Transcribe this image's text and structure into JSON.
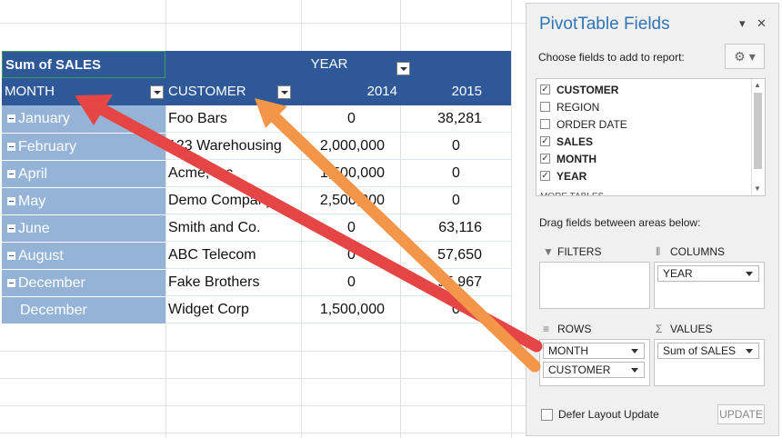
{
  "pivot": {
    "corner_label": "Sum of SALES",
    "year_label": "YEAR",
    "month_label": "MONTH",
    "customer_label": "CUSTOMER",
    "years": [
      "2014",
      "2015"
    ],
    "rows": [
      {
        "month": "January",
        "customer": "Foo Bars",
        "y2014": "0",
        "y2015": "38,281",
        "collapse": true
      },
      {
        "month": "February",
        "customer": "123 Warehousing",
        "y2014": "2,000,000",
        "y2015": "0",
        "collapse": true
      },
      {
        "month": "April",
        "customer": "Acme, Inc",
        "y2014": "1,500,000",
        "y2015": "0",
        "collapse": true
      },
      {
        "month": "May",
        "customer": "Demo Company",
        "y2014": "2,500,000",
        "y2015": "0",
        "collapse": true
      },
      {
        "month": "June",
        "customer": "Smith and Co.",
        "y2014": "0",
        "y2015": "63,116",
        "collapse": true
      },
      {
        "month": "August",
        "customer": "ABC Telecom",
        "y2014": "0",
        "y2015": "57,650",
        "collapse": true
      },
      {
        "month": "December",
        "customer": "Fake Brothers",
        "y2014": "0",
        "y2015": "95,967",
        "collapse": true
      },
      {
        "month": "December",
        "customer": "Widget Corp",
        "y2014": "1,500,000",
        "y2015": "0",
        "collapse": false
      }
    ]
  },
  "pane": {
    "title": "PivotTable Fields",
    "dropdown_glyph": "▾",
    "close_glyph": "✕",
    "choose_text": "Choose fields to add to report:",
    "gear_glyph": "⚙ ▾",
    "fields": [
      {
        "name": "CUSTOMER",
        "checked": true
      },
      {
        "name": "REGION",
        "checked": false
      },
      {
        "name": "ORDER DATE",
        "checked": false
      },
      {
        "name": "SALES",
        "checked": true
      },
      {
        "name": "MONTH",
        "checked": true
      },
      {
        "name": "YEAR",
        "checked": true
      },
      {
        "name": "MORE TABLES...",
        "checked": false
      }
    ],
    "check_glyph": "✓",
    "drag_text": "Drag fields between areas below:",
    "areas": {
      "filters": {
        "label": "FILTERS",
        "icon": "filter-icon",
        "glyph": "▼"
      },
      "columns": {
        "label": "COLUMNS",
        "icon": "columns-icon",
        "glyph": "⦀",
        "items": [
          "YEAR"
        ]
      },
      "rows": {
        "label": "ROWS",
        "icon": "rows-icon",
        "glyph": "≡",
        "items": [
          "MONTH",
          "CUSTOMER"
        ]
      },
      "values": {
        "label": "VALUES",
        "icon": "sigma-icon",
        "glyph": "Σ",
        "items": [
          "Sum of SALES"
        ]
      }
    },
    "defer_label": "Defer Layout Update",
    "update_label": "UPDATE"
  },
  "colors": {
    "header_blue": "#2e5897",
    "label_blue": "#95b3d7",
    "arrow_red": "#e64545",
    "arrow_orange": "#f4964a",
    "title_blue": "#2e75b6"
  }
}
